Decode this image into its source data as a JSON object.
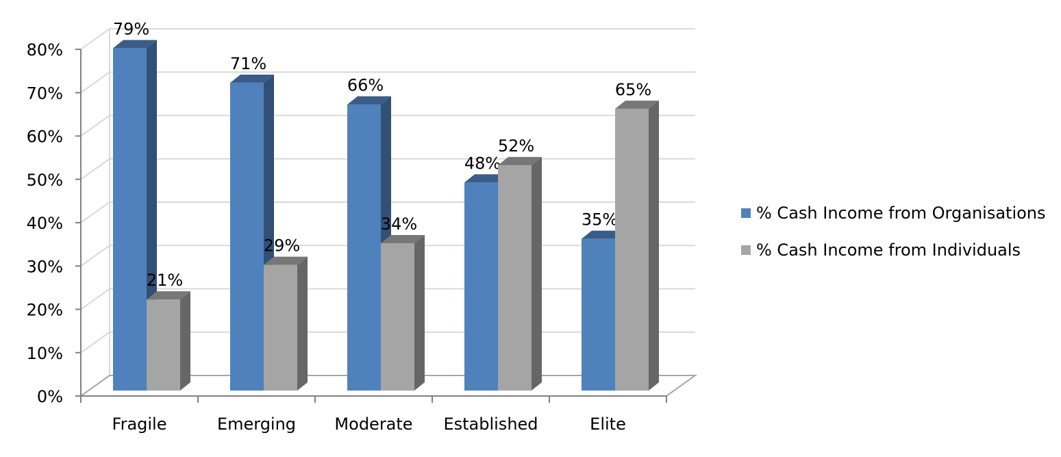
{
  "chart_data": {
    "type": "bar",
    "categories": [
      "Fragile",
      "Emerging",
      "Moderate",
      "Established",
      "Elite"
    ],
    "series": [
      {
        "name": "% Cash Income from Organisations",
        "values": [
          79,
          71,
          66,
          48,
          35
        ],
        "labels": [
          "79%",
          "71%",
          "66%",
          "48%",
          "35%"
        ],
        "color": "#4F81BD"
      },
      {
        "name": "% Cash Income from Individuals",
        "values": [
          21,
          29,
          34,
          52,
          65
        ],
        "labels": [
          "21%",
          "29%",
          "34%",
          "52%",
          "65%"
        ],
        "color": "#A5A5A5"
      }
    ],
    "y_ticks": [
      "0%",
      "10%",
      "20%",
      "30%",
      "40%",
      "50%",
      "60%",
      "70%",
      "80%"
    ],
    "ylim": [
      0,
      80
    ],
    "title": "",
    "xlabel": "",
    "ylabel": "",
    "grid": true,
    "legend_position": "right",
    "style": "3d-clustered-column"
  }
}
